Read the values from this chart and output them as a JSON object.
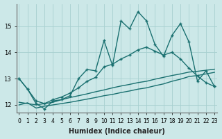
{
  "background_color": "#cce8e8",
  "grid_color": "#a8d0d0",
  "line_color": "#1a7070",
  "xlabel": "Humidex (Indice chaleur)",
  "xlim": [
    -0.3,
    23.3
  ],
  "ylim": [
    11.7,
    15.85
  ],
  "yticks": [
    12,
    13,
    14,
    15
  ],
  "xticks": [
    0,
    1,
    2,
    3,
    4,
    5,
    6,
    7,
    8,
    9,
    10,
    11,
    12,
    13,
    14,
    15,
    16,
    17,
    18,
    19,
    20,
    21,
    22,
    23
  ],
  "series": [
    {
      "x": [
        0,
        1,
        2,
        3,
        4,
        5,
        6,
        7,
        8,
        9,
        10,
        11,
        12,
        13,
        14,
        15,
        16,
        17,
        18,
        19,
        20,
        21,
        22,
        23
      ],
      "y": [
        13.0,
        12.6,
        12.05,
        11.85,
        12.15,
        12.2,
        12.35,
        13.0,
        13.35,
        13.3,
        14.45,
        13.5,
        15.2,
        14.9,
        15.55,
        15.2,
        14.3,
        13.85,
        14.65,
        15.1,
        14.4,
        12.9,
        13.3,
        12.7
      ],
      "marker": true,
      "linewidth": 1.0
    },
    {
      "x": [
        0,
        1,
        2,
        3,
        4,
        5,
        6,
        7,
        8,
        9,
        10,
        11,
        12,
        13,
        14,
        15,
        16,
        17,
        18,
        19,
        20,
        21,
        22,
        23
      ],
      "y": [
        13.0,
        12.6,
        12.15,
        12.05,
        12.2,
        12.3,
        12.45,
        12.65,
        12.9,
        13.05,
        13.45,
        13.55,
        13.75,
        13.9,
        14.1,
        14.2,
        14.05,
        13.9,
        14.0,
        13.75,
        13.4,
        13.1,
        12.85,
        12.7
      ],
      "marker": true,
      "linewidth": 1.0
    },
    {
      "x": [
        0,
        1,
        2,
        3,
        4,
        5,
        6,
        7,
        8,
        9,
        10,
        11,
        12,
        13,
        14,
        15,
        16,
        17,
        18,
        19,
        20,
        21,
        22,
        23
      ],
      "y": [
        12.1,
        12.05,
        12.0,
        12.05,
        12.1,
        12.2,
        12.28,
        12.35,
        12.42,
        12.5,
        12.57,
        12.65,
        12.72,
        12.78,
        12.85,
        12.9,
        12.98,
        13.05,
        13.12,
        13.18,
        13.25,
        13.28,
        13.32,
        13.36
      ],
      "marker": false,
      "linewidth": 1.0
    },
    {
      "x": [
        0,
        1,
        2,
        3,
        4,
        5,
        6,
        7,
        8,
        9,
        10,
        11,
        12,
        13,
        14,
        15,
        16,
        17,
        18,
        19,
        20,
        21,
        22,
        23
      ],
      "y": [
        12.0,
        12.08,
        11.88,
        11.95,
        12.0,
        12.05,
        12.1,
        12.16,
        12.22,
        12.28,
        12.35,
        12.4,
        12.47,
        12.53,
        12.6,
        12.65,
        12.73,
        12.8,
        12.9,
        12.98,
        13.08,
        13.12,
        13.18,
        13.24
      ],
      "marker": false,
      "linewidth": 1.0
    }
  ]
}
